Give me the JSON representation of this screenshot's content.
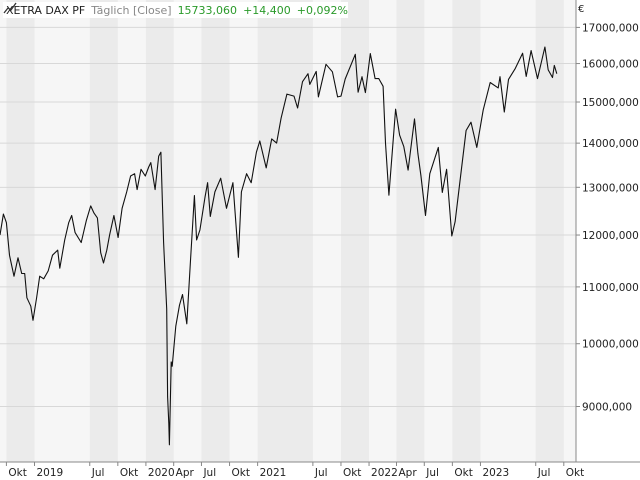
{
  "header": {
    "symbol": "XETRA DAX PF",
    "period": "Täglich [Close]",
    "last": "15733,060",
    "change_abs": "+14,400",
    "change_pct": "+0,092%"
  },
  "currency": "€",
  "colors": {
    "line": "#111111",
    "band_dark": "#ebebeb",
    "band_light": "#f6f6f6",
    "grid": "#d8d8d8",
    "axis": "#888888",
    "positive": "#2a9a2a"
  },
  "chart_data": {
    "type": "line",
    "title": "XETRA DAX PF",
    "ylabel": "€",
    "y_scale": "log",
    "ylim": [
      8200,
      17800
    ],
    "xlim": [
      "2018-09-10",
      "2023-11-10"
    ],
    "y_ticks": [
      9000,
      10000,
      11000,
      12000,
      13000,
      14000,
      15000,
      16000,
      17000
    ],
    "y_tick_labels": [
      "9000,000",
      "10000,000",
      "11000,000",
      "12000,000",
      "13000,000",
      "14000,000",
      "15000,000",
      "16000,000",
      "17000,000"
    ],
    "x_ticks": [
      {
        "date": "2018-10-01",
        "label": "Okt"
      },
      {
        "date": "2019-01-01",
        "label": "2019"
      },
      {
        "date": "2019-07-01",
        "label": "Jul"
      },
      {
        "date": "2019-10-01",
        "label": "Okt"
      },
      {
        "date": "2020-01-01",
        "label": "2020"
      },
      {
        "date": "2020-04-01",
        "label": "Apr"
      },
      {
        "date": "2020-07-01",
        "label": "Jul"
      },
      {
        "date": "2020-10-01",
        "label": "Okt"
      },
      {
        "date": "2021-01-01",
        "label": "2021"
      },
      {
        "date": "2021-07-01",
        "label": "Jul"
      },
      {
        "date": "2021-10-01",
        "label": "Okt"
      },
      {
        "date": "2022-01-01",
        "label": "2022"
      },
      {
        "date": "2022-04-01",
        "label": "Apr"
      },
      {
        "date": "2022-07-01",
        "label": "Jul"
      },
      {
        "date": "2022-10-01",
        "label": "Okt"
      },
      {
        "date": "2023-01-01",
        "label": "2023"
      },
      {
        "date": "2023-07-01",
        "label": "Jul"
      },
      {
        "date": "2023-10-01",
        "label": "Okt"
      }
    ],
    "grid": true,
    "series": [
      {
        "name": "XETRA DAX PF",
        "points": [
          [
            "2018-09-10",
            12000
          ],
          [
            "2018-09-21",
            12430
          ],
          [
            "2018-10-01",
            12250
          ],
          [
            "2018-10-11",
            11600
          ],
          [
            "2018-10-26",
            11200
          ],
          [
            "2018-11-08",
            11550
          ],
          [
            "2018-11-20",
            11250
          ],
          [
            "2018-11-30",
            11250
          ],
          [
            "2018-12-07",
            10800
          ],
          [
            "2018-12-20",
            10650
          ],
          [
            "2018-12-27",
            10400
          ],
          [
            "2019-01-08",
            10800
          ],
          [
            "2019-01-18",
            11200
          ],
          [
            "2019-01-31",
            11150
          ],
          [
            "2019-02-15",
            11300
          ],
          [
            "2019-03-01",
            11600
          ],
          [
            "2019-03-18",
            11700
          ],
          [
            "2019-03-25",
            11350
          ],
          [
            "2019-04-10",
            11900
          ],
          [
            "2019-04-23",
            12250
          ],
          [
            "2019-05-03",
            12400
          ],
          [
            "2019-05-14",
            12050
          ],
          [
            "2019-06-03",
            11850
          ],
          [
            "2019-06-20",
            12300
          ],
          [
            "2019-07-04",
            12600
          ],
          [
            "2019-07-15",
            12450
          ],
          [
            "2019-07-26",
            12350
          ],
          [
            "2019-08-06",
            11650
          ],
          [
            "2019-08-15",
            11450
          ],
          [
            "2019-08-26",
            11700
          ],
          [
            "2019-09-04",
            12000
          ],
          [
            "2019-09-18",
            12400
          ],
          [
            "2019-10-02",
            11950
          ],
          [
            "2019-10-15",
            12550
          ],
          [
            "2019-10-30",
            12900
          ],
          [
            "2019-11-12",
            13250
          ],
          [
            "2019-11-25",
            13300
          ],
          [
            "2019-12-03",
            12950
          ],
          [
            "2019-12-16",
            13400
          ],
          [
            "2019-12-30",
            13250
          ],
          [
            "2020-01-10",
            13450
          ],
          [
            "2020-01-17",
            13550
          ],
          [
            "2020-01-31",
            12950
          ],
          [
            "2020-02-12",
            13700
          ],
          [
            "2020-02-19",
            13790
          ],
          [
            "2020-02-28",
            11850
          ],
          [
            "2020-03-09",
            10600
          ],
          [
            "2020-03-12",
            9150
          ],
          [
            "2020-03-16",
            8750
          ],
          [
            "2020-03-18",
            8440
          ],
          [
            "2020-03-24",
            9700
          ],
          [
            "2020-03-27",
            9630
          ],
          [
            "2020-04-08",
            10300
          ],
          [
            "2020-04-20",
            10670
          ],
          [
            "2020-04-30",
            10860
          ],
          [
            "2020-05-14",
            10340
          ],
          [
            "2020-05-26",
            11500
          ],
          [
            "2020-06-08",
            12820
          ],
          [
            "2020-06-15",
            11900
          ],
          [
            "2020-06-26",
            12100
          ],
          [
            "2020-07-13",
            12800
          ],
          [
            "2020-07-21",
            13100
          ],
          [
            "2020-07-30",
            12380
          ],
          [
            "2020-08-14",
            12900
          ],
          [
            "2020-09-02",
            13200
          ],
          [
            "2020-09-21",
            12550
          ],
          [
            "2020-10-12",
            13100
          ],
          [
            "2020-10-30",
            11560
          ],
          [
            "2020-11-09",
            12900
          ],
          [
            "2020-11-26",
            13300
          ],
          [
            "2020-12-11",
            13100
          ],
          [
            "2020-12-28",
            13790
          ],
          [
            "2021-01-08",
            14050
          ],
          [
            "2021-01-29",
            13430
          ],
          [
            "2021-02-16",
            14100
          ],
          [
            "2021-03-04",
            14000
          ],
          [
            "2021-03-19",
            14600
          ],
          [
            "2021-04-07",
            15200
          ],
          [
            "2021-04-30",
            15150
          ],
          [
            "2021-05-12",
            14850
          ],
          [
            "2021-05-28",
            15520
          ],
          [
            "2021-06-15",
            15730
          ],
          [
            "2021-06-21",
            15450
          ],
          [
            "2021-07-12",
            15790
          ],
          [
            "2021-07-19",
            15130
          ],
          [
            "2021-08-13",
            15980
          ],
          [
            "2021-09-03",
            15780
          ],
          [
            "2021-09-20",
            15130
          ],
          [
            "2021-10-01",
            15150
          ],
          [
            "2021-10-15",
            15590
          ],
          [
            "2021-11-17",
            16250
          ],
          [
            "2021-11-26",
            15250
          ],
          [
            "2021-12-09",
            15650
          ],
          [
            "2021-12-20",
            15240
          ],
          [
            "2022-01-05",
            16270
          ],
          [
            "2022-01-21",
            15600
          ],
          [
            "2022-02-02",
            15600
          ],
          [
            "2022-02-16",
            15400
          ],
          [
            "2022-02-24",
            14000
          ],
          [
            "2022-03-07",
            12830
          ],
          [
            "2022-03-29",
            14820
          ],
          [
            "2022-04-11",
            14190
          ],
          [
            "2022-04-25",
            13920
          ],
          [
            "2022-05-09",
            13380
          ],
          [
            "2022-05-30",
            14580
          ],
          [
            "2022-06-10",
            13760
          ],
          [
            "2022-06-20",
            13260
          ],
          [
            "2022-07-05",
            12400
          ],
          [
            "2022-07-19",
            13300
          ],
          [
            "2022-08-16",
            13900
          ],
          [
            "2022-08-29",
            12890
          ],
          [
            "2022-09-12",
            13400
          ],
          [
            "2022-09-29",
            11980
          ],
          [
            "2022-10-10",
            12270
          ],
          [
            "2022-10-28",
            13250
          ],
          [
            "2022-11-15",
            14300
          ],
          [
            "2022-12-01",
            14500
          ],
          [
            "2022-12-20",
            13900
          ],
          [
            "2023-01-10",
            14800
          ],
          [
            "2023-02-02",
            15500
          ],
          [
            "2023-02-28",
            15360
          ],
          [
            "2023-03-06",
            15650
          ],
          [
            "2023-03-20",
            14750
          ],
          [
            "2023-04-03",
            15580
          ],
          [
            "2023-04-25",
            15870
          ],
          [
            "2023-05-19",
            16280
          ],
          [
            "2023-05-31",
            15660
          ],
          [
            "2023-06-16",
            16350
          ],
          [
            "2023-07-07",
            15600
          ],
          [
            "2023-07-31",
            16450
          ],
          [
            "2023-08-11",
            15830
          ],
          [
            "2023-08-25",
            15630
          ],
          [
            "2023-08-31",
            15950
          ],
          [
            "2023-09-08",
            15730
          ]
        ]
      }
    ]
  }
}
